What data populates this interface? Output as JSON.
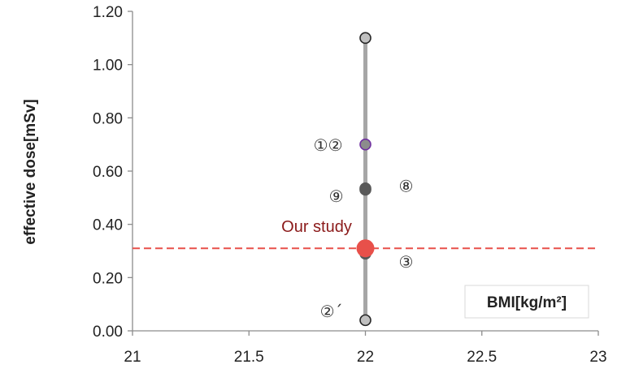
{
  "chart_data": {
    "type": "scatter",
    "title": "",
    "xlabel": "BMI[kg/m²]",
    "ylabel": "effective dose[mSv]",
    "xlim": [
      21,
      23
    ],
    "ylim": [
      0,
      1.2
    ],
    "x_ticks": [
      "21",
      "21.5",
      "22",
      "22.5",
      "23"
    ],
    "y_ticks": [
      "0.00",
      "0.20",
      "0.40",
      "0.60",
      "0.80",
      "1.00",
      "1.20"
    ],
    "grid": false,
    "range_bar": {
      "x": 22,
      "y_min": 0.04,
      "y_max": 1.1,
      "color": "#a6a6a6"
    },
    "points": [
      {
        "x": 22,
        "y": 1.1,
        "label": "",
        "color": "#a6a6a6"
      },
      {
        "x": 22,
        "y": 0.7,
        "label": "①②",
        "color": "#7030a0"
      },
      {
        "x": 22,
        "y": 0.535,
        "label": "⑧",
        "color": "#595959"
      },
      {
        "x": 22,
        "y": 0.53,
        "label": "⑨",
        "color": "#595959"
      },
      {
        "x": 22,
        "y": 0.29,
        "label": "③",
        "color": "#595959"
      },
      {
        "x": 22,
        "y": 0.04,
        "label": "②´",
        "color": "#a6a6a6"
      }
    ],
    "reference": {
      "y": 0.31,
      "x": 22,
      "label": "Our study",
      "color": "#e8504a",
      "label_color": "#8b1a1a"
    }
  }
}
